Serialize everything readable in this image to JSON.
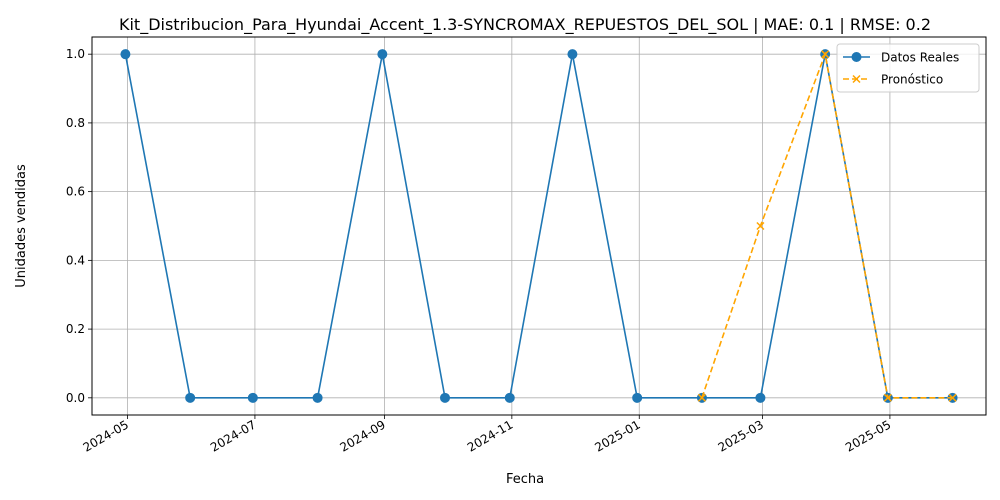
{
  "chart_data": {
    "type": "line",
    "title": "Kit_Distribucion_Para_Hyundai_Accent_1.3-SYNCROMAX_REPUESTOS_DEL_SOL | MAE: 0.1 | RMSE: 0.2",
    "xlabel": "Fecha",
    "ylabel": "Unidades vendidas",
    "xlim": [
      "2024-04-14",
      "2025-06-16"
    ],
    "ylim": [
      -0.05,
      1.05
    ],
    "grid": true,
    "legend_position": "upper right",
    "x_ticks": [
      "2024-05",
      "2024-07",
      "2024-09",
      "2024-11",
      "2025-01",
      "2025-03",
      "2025-05"
    ],
    "x_tick_dates": [
      "2024-05-01",
      "2024-07-01",
      "2024-09-01",
      "2024-11-01",
      "2025-01-01",
      "2025-03-01",
      "2025-05-01"
    ],
    "y_ticks": [
      "0.0",
      "0.2",
      "0.4",
      "0.6",
      "0.8",
      "1.0"
    ],
    "y_tick_values": [
      0,
      0.2,
      0.4,
      0.6,
      0.8,
      1.0
    ],
    "series": [
      {
        "name": "Datos Reales",
        "color": "#1f77b4",
        "marker": "circle",
        "linestyle": "solid",
        "x": [
          "2024-04-30",
          "2024-05-31",
          "2024-06-30",
          "2024-07-31",
          "2024-08-31",
          "2024-09-30",
          "2024-10-31",
          "2024-11-30",
          "2024-12-31",
          "2025-01-31",
          "2025-02-28",
          "2025-03-31",
          "2025-04-30",
          "2025-05-31"
        ],
        "values": [
          1,
          0,
          0,
          0,
          1,
          0,
          0,
          1,
          0,
          0,
          0,
          1,
          0,
          0
        ]
      },
      {
        "name": "Pronóstico",
        "color": "#ffa500",
        "marker": "x",
        "linestyle": "dashed",
        "x": [
          "2025-01-31",
          "2025-02-28",
          "2025-03-31",
          "2025-04-30",
          "2025-05-31"
        ],
        "values": [
          0,
          0.5,
          1,
          0,
          0
        ]
      }
    ]
  }
}
